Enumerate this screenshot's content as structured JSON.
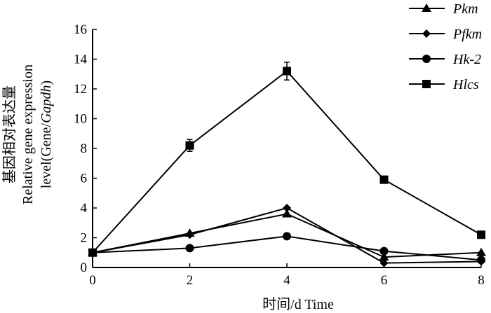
{
  "chart_data": {
    "type": "line",
    "x": [
      0,
      2,
      4,
      6,
      8
    ],
    "xlim": [
      0,
      8
    ],
    "ylim": [
      0,
      16
    ],
    "xticks": [
      "0",
      "2",
      "4",
      "6",
      "8"
    ],
    "yticks": [
      "0",
      "2",
      "4",
      "6",
      "8",
      "10",
      "12",
      "14",
      "16"
    ],
    "xlabel": "时间/d  Time",
    "ylabel_cn": "基因相对表达量",
    "ylabel_line1": "Relative gene expression",
    "ylabel_line2_a": "level(Gene/",
    "ylabel_line2_b": "Gapdh",
    "ylabel_line2_c": ")",
    "grid": false,
    "legend_position": "top-right",
    "series": [
      {
        "name": "Pkm",
        "marker": "triangle",
        "values": [
          1.0,
          2.3,
          3.6,
          0.7,
          1.0
        ]
      },
      {
        "name": "Pfkm",
        "marker": "diamond",
        "values": [
          1.0,
          2.2,
          4.0,
          0.3,
          0.4
        ]
      },
      {
        "name": "Hk-2",
        "marker": "circle",
        "values": [
          1.0,
          1.3,
          2.1,
          1.1,
          0.5
        ]
      },
      {
        "name": "Hlcs",
        "marker": "square",
        "values": [
          1.0,
          8.2,
          13.2,
          5.9,
          2.2
        ],
        "error": [
          0.1,
          0.4,
          0.6,
          0.1,
          0.1
        ]
      }
    ]
  }
}
